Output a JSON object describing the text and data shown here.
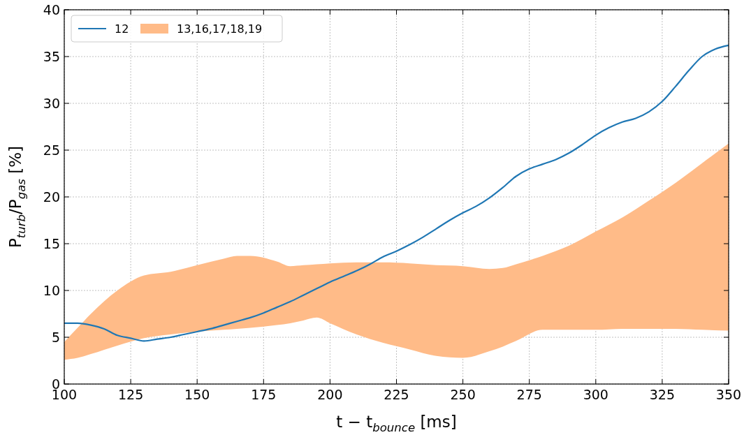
{
  "chart_data": {
    "type": "line",
    "xlabel": "t − t$_{bounce}$ [ms]",
    "ylabel": "P$_{turb}$/P$_{gas}$ [%]",
    "xlim": [
      100,
      350
    ],
    "xticks": [
      100,
      125,
      150,
      175,
      200,
      225,
      250,
      275,
      300,
      325,
      350
    ],
    "ylim": [
      0,
      40
    ],
    "yticks": [
      0,
      5,
      10,
      15,
      20,
      25,
      30,
      35,
      40
    ],
    "grid": true,
    "legend": "top left",
    "series": [
      {
        "name": "12",
        "color": "#1f77b4",
        "x": [
          100,
          105,
          110,
          115,
          120,
          125,
          130,
          135,
          140,
          145,
          150,
          155,
          160,
          165,
          170,
          175,
          180,
          185,
          190,
          195,
          200,
          205,
          210,
          215,
          220,
          225,
          230,
          235,
          240,
          245,
          250,
          255,
          260,
          265,
          270,
          275,
          280,
          285,
          290,
          295,
          300,
          305,
          310,
          315,
          320,
          325,
          330,
          335,
          340,
          345,
          350
        ],
        "values": [
          6.5,
          6.5,
          6.3,
          5.9,
          5.2,
          4.9,
          4.6,
          4.8,
          5.0,
          5.3,
          5.6,
          5.9,
          6.3,
          6.7,
          7.1,
          7.6,
          8.2,
          8.8,
          9.5,
          10.2,
          10.9,
          11.5,
          12.1,
          12.8,
          13.6,
          14.2,
          14.9,
          15.7,
          16.6,
          17.5,
          18.3,
          19.0,
          19.9,
          21.0,
          22.2,
          23.0,
          23.5,
          24.0,
          24.7,
          25.6,
          26.6,
          27.4,
          28.0,
          28.4,
          29.1,
          30.2,
          31.8,
          33.5,
          35.0,
          35.8,
          36.2
        ]
      },
      {
        "name": "13,16,17,18,19",
        "type": "area",
        "color": "#ffbb88",
        "x": [
          100,
          105,
          110,
          120,
          130,
          140,
          150,
          160,
          165,
          170,
          180,
          185,
          190,
          195,
          200,
          210,
          220,
          230,
          240,
          250,
          260,
          265,
          270,
          280,
          290,
          300,
          310,
          320,
          330,
          340,
          350
        ],
        "lower": [
          2.6,
          2.8,
          3.2,
          4.1,
          4.9,
          5.3,
          5.6,
          5.8,
          5.9,
          6.0,
          6.3,
          6.5,
          6.8,
          7.1,
          6.5,
          5.3,
          4.4,
          3.7,
          3.0,
          2.8,
          3.5,
          4.0,
          4.6,
          5.8,
          5.8,
          5.8,
          5.9,
          5.9,
          5.9,
          5.8,
          5.7
        ],
        "values": [
          null,
          null,
          null,
          null,
          null,
          null,
          null,
          null,
          null,
          null,
          null,
          null,
          null,
          null,
          null,
          null,
          null,
          null,
          null,
          null,
          null,
          null,
          null,
          null,
          null,
          null,
          null,
          null,
          null,
          null,
          null
        ],
        "upper": [
          4.5,
          6.0,
          7.5,
          10.0,
          11.6,
          12.0,
          12.7,
          13.4,
          13.7,
          13.7,
          13.1,
          12.6,
          12.7,
          12.8,
          12.9,
          13.0,
          13.0,
          12.9,
          12.7,
          12.6,
          12.3,
          12.4,
          12.8,
          13.7,
          14.8,
          16.3,
          17.8,
          19.6,
          21.5,
          23.6,
          25.7
        ]
      }
    ]
  }
}
